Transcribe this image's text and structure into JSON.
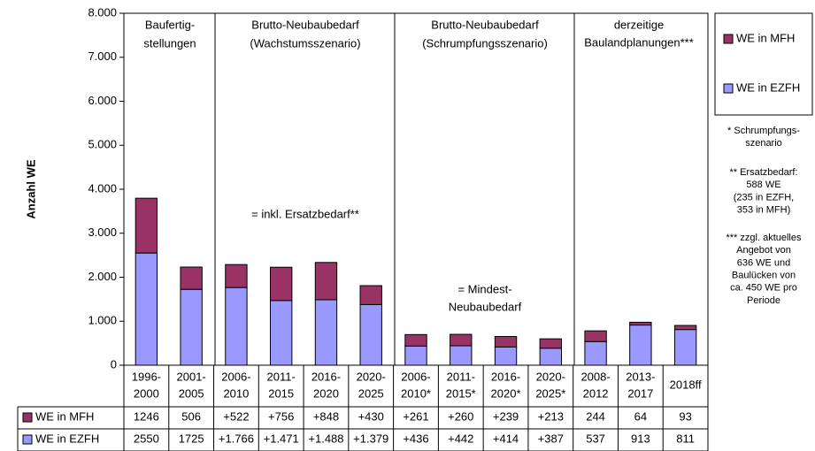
{
  "chart_data": {
    "type": "stacked-bar",
    "y_label": "Anzahl WE",
    "categories": [
      [
        "1996-",
        "2000"
      ],
      [
        "2001-",
        "2005"
      ],
      [
        "2006-",
        "2010"
      ],
      [
        "2011-",
        "2015"
      ],
      [
        "2016-",
        "2020"
      ],
      [
        "2020-",
        "2025"
      ],
      [
        "2006-",
        "2010*"
      ],
      [
        "2011-",
        "2015*"
      ],
      [
        "2016-",
        "2020*"
      ],
      [
        "2020-",
        "2025*"
      ],
      [
        "2008-",
        "2012"
      ],
      [
        "2013-",
        "2017"
      ],
      [
        "2018ff"
      ]
    ],
    "series": [
      {
        "name": "WE in EZFH",
        "color": "#9999ff",
        "values": [
          2550,
          1725,
          1766,
          1471,
          1488,
          1379,
          436,
          442,
          414,
          387,
          537,
          913,
          811
        ],
        "value_labels": [
          "2550",
          "1725",
          "+1.766",
          "+1.471",
          "+1.488",
          "+1.379",
          "+436",
          "+442",
          "+414",
          "+387",
          "537",
          "913",
          "811"
        ]
      },
      {
        "name": "WE in MFH",
        "color": "#993366",
        "values": [
          1246,
          506,
          522,
          756,
          848,
          430,
          261,
          260,
          239,
          213,
          244,
          64,
          93
        ],
        "value_labels": [
          "1246",
          "506",
          "+522",
          "+756",
          "+848",
          "+430",
          "+261",
          "+260",
          "+239",
          "+213",
          "244",
          "64",
          "93"
        ]
      }
    ],
    "ylim": [
      0,
      8000
    ],
    "yticks": [
      0,
      {
        "value": 1000,
        "label": "1.000"
      },
      {
        "value": 2000,
        "label": "2.000"
      },
      {
        "value": 3000,
        "label": "3.000"
      },
      {
        "value": 4000,
        "label": "4.000"
      },
      {
        "value": 5000,
        "label": "5.000"
      },
      {
        "value": 6000,
        "label": "6.000"
      },
      {
        "value": 7000,
        "label": "7.000"
      },
      {
        "value": 8000,
        "label": "8.000"
      }
    ],
    "grid": false,
    "groups": [
      [
        "Baufertig-",
        "stellungen"
      ],
      [
        "Brutto-Neubaubedarf",
        "(Wachstumsszenario)"
      ],
      [
        "Brutto-Neubaubedarf",
        "(Schrumpfungsszenario)"
      ],
      [
        "derzeitige",
        "Baulandplanungen***"
      ]
    ],
    "annotations": [
      [
        "= inkl. Ersatzbedarf**"
      ],
      [
        "= Mindest-",
        "Neubaubedarf"
      ]
    ],
    "notes": [
      [
        "* Schrumpfungs-",
        "szenario"
      ],
      [
        "** Ersatzbedarf:",
        "588 WE",
        "(235 in EZFH,",
        "353 in MFH)"
      ],
      [
        "*** zzgl. aktuelles",
        "Angebot von",
        "636 WE und",
        "Baulücken von",
        "ca. 450 WE pro",
        "Periode"
      ]
    ]
  }
}
